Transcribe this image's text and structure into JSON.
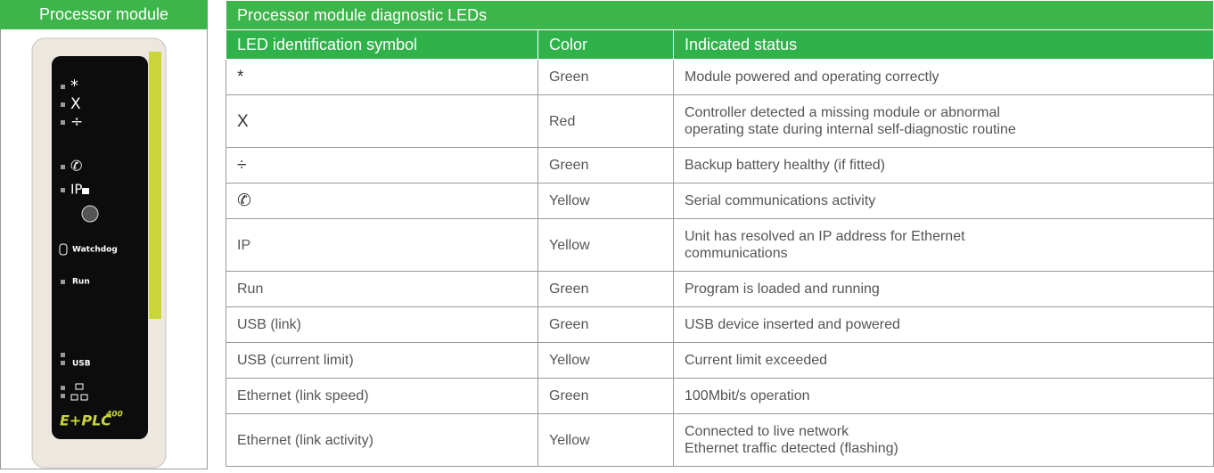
{
  "left_panel": {
    "title": "Processor module",
    "device": {
      "labels": [
        "*",
        "X",
        "÷",
        "✆",
        "IP",
        "Watchdog",
        "Run",
        "USB",
        "E+PLC",
        "400"
      ]
    }
  },
  "table": {
    "title": "Processor module diagnostic LEDs",
    "headers": [
      "LED identification symbol",
      "Color",
      "Indicated status"
    ],
    "rows": [
      [
        "*",
        "Green",
        "Module powered and operating correctly"
      ],
      [
        "X",
        "Red",
        "Controller detected a missing module or abnormal\noperating state during internal self-diagnostic routine"
      ],
      [
        "÷",
        "Green",
        "Backup battery healthy (if fitted)"
      ],
      [
        "✆",
        "Yellow",
        "Serial communications activity"
      ],
      [
        "IP",
        "Yellow",
        "Unit has resolved an IP address for Ethernet\ncommunications"
      ],
      [
        "Run",
        "Green",
        "Program is loaded and running"
      ],
      [
        "USB (link)",
        "Green",
        "USB device inserted and powered"
      ],
      [
        "USB (current limit)",
        "Yellow",
        "Current limit exceeded"
      ],
      [
        "Ethernet (link speed)",
        "Green",
        "100Mbit/s operation"
      ],
      [
        "Ethernet (link activity)",
        "Yellow",
        "Connected to live network\nEthernet traffic detected (flashing)"
      ]
    ]
  }
}
